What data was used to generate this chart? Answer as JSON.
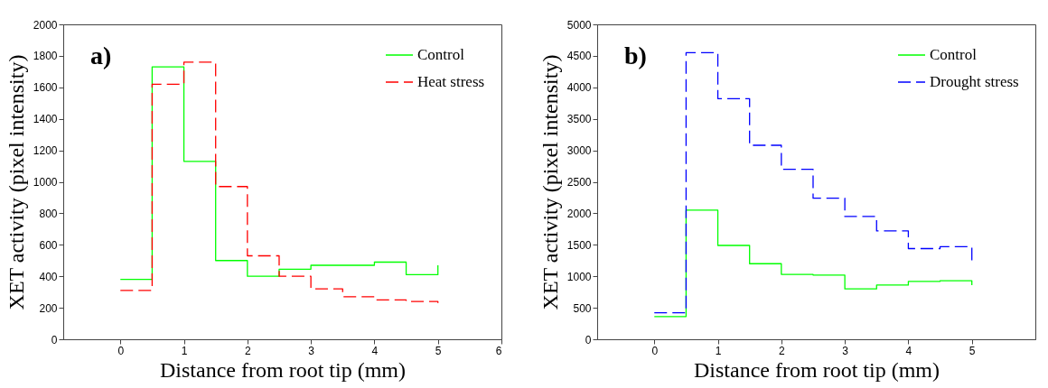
{
  "chart_data": [
    {
      "type": "step",
      "annotations": [
        "a)"
      ],
      "xlabel": "Distance from root tip (mm)",
      "ylabel": "XET activity (pixel intensity)",
      "x": [
        0,
        0.5,
        1,
        1.5,
        2,
        2.5,
        3,
        3.5,
        4,
        4.5,
        5
      ],
      "series": [
        {
          "name": "Control",
          "color": "#00ff00",
          "line_style": "solid",
          "values": [
            380,
            1730,
            1130,
            500,
            400,
            445,
            470,
            470,
            490,
            410,
            470
          ]
        },
        {
          "name": "Heat stress",
          "color": "#ff0000",
          "line_style": "dashed",
          "values": [
            310,
            1620,
            1760,
            970,
            530,
            400,
            320,
            270,
            250,
            240,
            230
          ]
        }
      ],
      "xlim": [
        -0.9,
        6
      ],
      "xticks": [
        0,
        1,
        2,
        3,
        4,
        5,
        6
      ],
      "ylim": [
        0,
        2000
      ],
      "yticks": [
        0,
        200,
        400,
        600,
        800,
        1000,
        1200,
        1400,
        1600,
        1800,
        2000
      ],
      "grid": false,
      "legend": "top right"
    },
    {
      "type": "step",
      "annotations": [
        "b)"
      ],
      "xlabel": "Distance from root tip (mm)",
      "ylabel": "XET activity (pixel intensity)",
      "x": [
        0,
        0.5,
        1,
        1.5,
        2,
        2.5,
        3,
        3.5,
        4,
        4.5,
        5
      ],
      "series": [
        {
          "name": "Control",
          "color": "#00ff00",
          "line_style": "solid",
          "values": [
            360,
            2050,
            1490,
            1200,
            1030,
            1020,
            800,
            860,
            920,
            930,
            860
          ]
        },
        {
          "name": "Drought stress",
          "color": "#0000ff",
          "line_style": "dashed",
          "values": [
            420,
            4550,
            3820,
            3080,
            2700,
            2240,
            1950,
            1720,
            1440,
            1470,
            1240
          ]
        }
      ],
      "xlim": [
        -0.9,
        6
      ],
      "xticks": [
        0,
        1,
        2,
        3,
        4,
        5
      ],
      "ylim": [
        0,
        5000
      ],
      "yticks": [
        0,
        500,
        1000,
        1500,
        2000,
        2500,
        3000,
        3500,
        4000,
        4500,
        5000
      ],
      "grid": false,
      "legend": "top right"
    }
  ]
}
